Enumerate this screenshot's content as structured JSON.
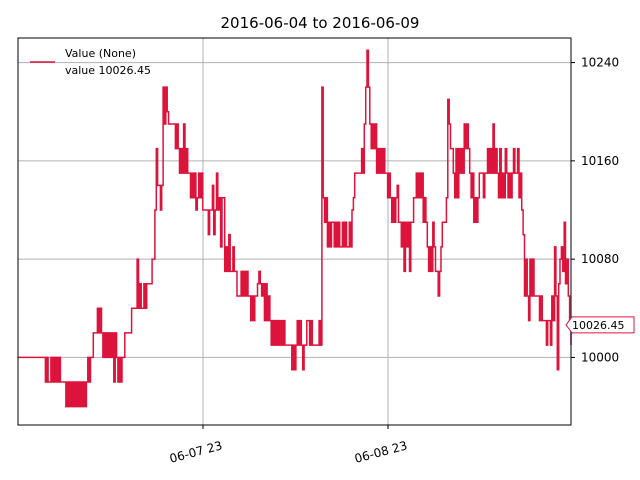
{
  "chart_data": {
    "type": "line",
    "title": "2016-06-04 to 2016-06-09",
    "xlabel": "",
    "ylabel": "",
    "x_tick_labels": [
      "06-07 23",
      "06-08 23"
    ],
    "y_ticks": [
      10000,
      10080,
      10160,
      10240
    ],
    "ylim": [
      9945,
      10260
    ],
    "grid": true,
    "y_axis_side": "right",
    "legend_placement": "top-left",
    "legend": [
      "Value (None)",
      "value 10026.45"
    ],
    "last_value_label": "10026.45",
    "line_color": "#dc143c",
    "series": [
      {
        "name": "Value (None)",
        "y": [
          10000,
          10000,
          10000,
          10000,
          10000,
          10000,
          10000,
          10000,
          10000,
          10000,
          10000,
          10000,
          10000,
          10000,
          10000,
          10000,
          10000,
          10000,
          10000,
          10000,
          9980,
          10000,
          9980,
          9980,
          10000,
          9980,
          10000,
          9980,
          10000,
          9980,
          10000,
          9980,
          9980,
          9980,
          9980,
          9960,
          9980,
          9960,
          9980,
          9960,
          9980,
          9960,
          9980,
          9960,
          9980,
          9960,
          9980,
          9960,
          9980,
          9960,
          9980,
          10000,
          9980,
          10000,
          10000,
          10020,
          10020,
          10020,
          10040,
          10020,
          10040,
          10020,
          10000,
          10020,
          10000,
          10020,
          10000,
          10020,
          10000,
          10020,
          9980,
          10020,
          10000,
          9980,
          10000,
          9980,
          10000,
          10000,
          10020,
          10020,
          10020,
          10020,
          10020,
          10040,
          10040,
          10040,
          10040,
          10080,
          10040,
          10060,
          10040,
          10040,
          10060,
          10040,
          10060,
          10060,
          10060,
          10060,
          10080,
          10080,
          10120,
          10170,
          10140,
          10140,
          10120,
          10140,
          10220,
          10190,
          10220,
          10200,
          10190,
          10190,
          10190,
          10190,
          10190,
          10170,
          10190,
          10170,
          10150,
          10170,
          10150,
          10190,
          10150,
          10170,
          10150,
          10150,
          10130,
          10150,
          10130,
          10150,
          10120,
          10130,
          10150,
          10130,
          10150,
          10120,
          10120,
          10120,
          10120,
          10100,
          10120,
          10120,
          10140,
          10100,
          10120,
          10150,
          10120,
          10130,
          10090,
          10130,
          10130,
          10070,
          10090,
          10070,
          10100,
          10070,
          10070,
          10090,
          10070,
          10070,
          10050,
          10050,
          10050,
          10070,
          10050,
          10070,
          10050,
          10070,
          10050,
          10050,
          10030,
          10050,
          10030,
          10050,
          10050,
          10060,
          10070,
          10060,
          10050,
          10060,
          10030,
          10060,
          10030,
          10050,
          10030,
          10010,
          10030,
          10010,
          10030,
          10010,
          10030,
          10010,
          10030,
          10010,
          10030,
          10010,
          10010,
          10010,
          10010,
          10010,
          9990,
          10010,
          9990,
          10010,
          10030,
          10010,
          10030,
          10010,
          9990,
          10010,
          10010,
          10030,
          10030,
          10010,
          10030,
          10010,
          10010,
          10010,
          10010,
          10010,
          10030,
          10010,
          10220,
          10130,
          10110,
          10130,
          10090,
          10110,
          10090,
          10110,
          10110,
          10090,
          10110,
          10090,
          10110,
          10090,
          10090,
          10110,
          10090,
          10110,
          10090,
          10090,
          10110,
          10090,
          10120,
          10130,
          10150,
          10150,
          10150,
          10150,
          10150,
          10170,
          10150,
          10190,
          10220,
          10250,
          10220,
          10190,
          10170,
          10190,
          10170,
          10190,
          10150,
          10170,
          10150,
          10170,
          10150,
          10170,
          10150,
          10150,
          10130,
          10150,
          10130,
          10110,
          10130,
          10110,
          10130,
          10140,
          10110,
          10110,
          10090,
          10110,
          10070,
          10110,
          10090,
          10110,
          10070,
          10110,
          10110,
          10130,
          10130,
          10150,
          10130,
          10150,
          10130,
          10150,
          10110,
          10130,
          10110,
          10090,
          10070,
          10090,
          10070,
          10110,
          10090,
          10070,
          10070,
          10050,
          10070,
          10090,
          10110,
          10110,
          10110,
          10130,
          10210,
          10190,
          10170,
          10170,
          10150,
          10130,
          10170,
          10130,
          10170,
          10150,
          10170,
          10150,
          10190,
          10170,
          10190,
          10170,
          10150,
          10130,
          10150,
          10110,
          10130,
          10110,
          10130,
          10150,
          10150,
          10150,
          10130,
          10150,
          10150,
          10170,
          10150,
          10170,
          10150,
          10190,
          10150,
          10170,
          10150,
          10130,
          10170,
          10130,
          10150,
          10130,
          10170,
          10150,
          10130,
          10150,
          10130,
          10150,
          10170,
          10150,
          10150,
          10170,
          10130,
          10150,
          10120,
          10100,
          10050,
          10080,
          10050,
          10030,
          10080,
          10050,
          10080,
          10050,
          10050,
          10050,
          10050,
          10030,
          10050,
          10030,
          10030,
          10030,
          10010,
          10030,
          10030,
          10010,
          10050,
          10030,
          10090,
          10050,
          9990,
          10060,
          10080,
          10090,
          10070,
          10110,
          10060,
          10080,
          10050,
          10030,
          10010
        ]
      }
    ]
  }
}
